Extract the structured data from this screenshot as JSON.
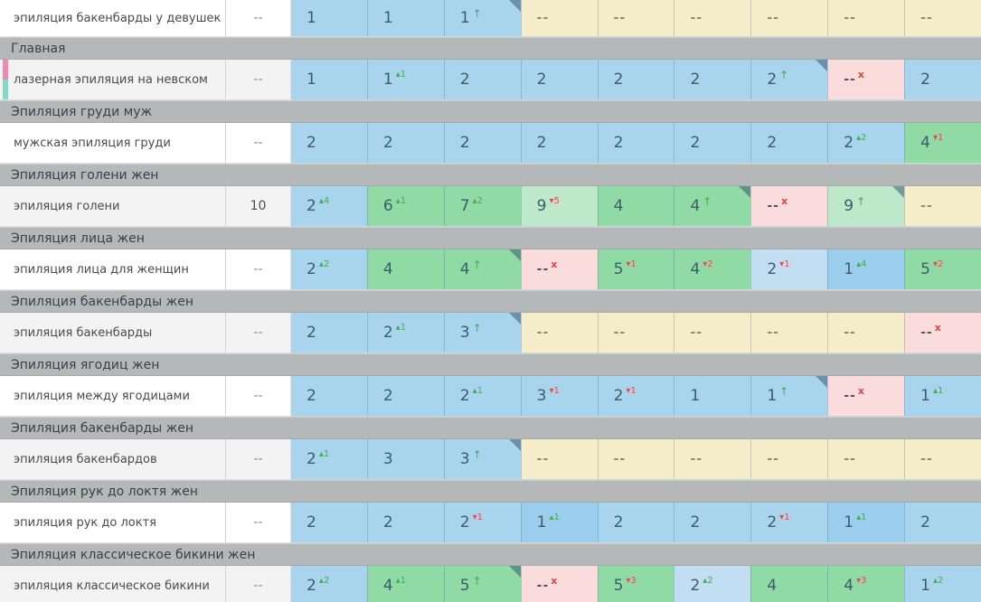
{
  "colors": {
    "position_blue": "#a9d4ee",
    "position_blue_light": "#c1def2",
    "position_blue_dark": "#9bcdec",
    "position_green": "#90dba5",
    "position_green_light": "#bde8ca",
    "no_position_cream": "#f5ecc9",
    "lost_pink": "#f9dcdb",
    "group_header_bg": "#b5b8b9",
    "change_up_green": "#44a95e",
    "change_down_red": "#e0504e",
    "lost_x_red": "#e04444",
    "tag_marker_pink": "#ef8bb2",
    "tag_marker_teal": "#7fdcc3"
  },
  "table": {
    "rows": [
      {
        "type": "keyword",
        "label": "эпиляция бакенбарды у девушек",
        "volume": "--",
        "stripe": false,
        "tags": false,
        "cells": [
          {
            "v": "1",
            "bg": "blue"
          },
          {
            "v": "1",
            "bg": "blue"
          },
          {
            "v": "1",
            "bg": "blue",
            "arrow": true,
            "corner": true
          },
          {
            "v": "--",
            "bg": "cream"
          },
          {
            "v": "--",
            "bg": "cream"
          },
          {
            "v": "--",
            "bg": "cream"
          },
          {
            "v": "--",
            "bg": "cream"
          },
          {
            "v": "--",
            "bg": "cream"
          },
          {
            "v": "--",
            "bg": "cream"
          }
        ]
      },
      {
        "type": "group",
        "label": "Главная"
      },
      {
        "type": "keyword",
        "label": "лазерная эпиляция на невском",
        "volume": "--",
        "stripe": true,
        "tags": true,
        "cells": [
          {
            "v": "1",
            "bg": "blue"
          },
          {
            "v": "1",
            "bg": "blue",
            "sup": "+1"
          },
          {
            "v": "2",
            "bg": "blue"
          },
          {
            "v": "2",
            "bg": "blue"
          },
          {
            "v": "2",
            "bg": "blue"
          },
          {
            "v": "2",
            "bg": "blue"
          },
          {
            "v": "2",
            "bg": "blue",
            "arrow": true,
            "corner": true
          },
          {
            "v": "--",
            "bg": "pink",
            "x": true
          },
          {
            "v": "2",
            "bg": "blue"
          }
        ]
      },
      {
        "type": "group",
        "label": "Эпиляция груди муж"
      },
      {
        "type": "keyword",
        "label": "мужская эпиляция груди",
        "volume": "--",
        "stripe": false,
        "tags": false,
        "cells": [
          {
            "v": "2",
            "bg": "blue"
          },
          {
            "v": "2",
            "bg": "blue"
          },
          {
            "v": "2",
            "bg": "blue"
          },
          {
            "v": "2",
            "bg": "blue"
          },
          {
            "v": "2",
            "bg": "blue"
          },
          {
            "v": "2",
            "bg": "blue"
          },
          {
            "v": "2",
            "bg": "blue"
          },
          {
            "v": "2",
            "bg": "blue",
            "sup": "+2"
          },
          {
            "v": "4",
            "bg": "green",
            "sup": "-1"
          }
        ]
      },
      {
        "type": "group",
        "label": "Эпиляция голени жен"
      },
      {
        "type": "keyword",
        "label": "эпиляция голени",
        "volume": "10",
        "stripe": true,
        "tags": false,
        "cells": [
          {
            "v": "2",
            "bg": "blue",
            "sup": "+4"
          },
          {
            "v": "6",
            "bg": "green",
            "sup": "+1"
          },
          {
            "v": "7",
            "bg": "green",
            "sup": "+2"
          },
          {
            "v": "9",
            "bg": "greenLight",
            "sup": "-5"
          },
          {
            "v": "4",
            "bg": "green"
          },
          {
            "v": "4",
            "bg": "green",
            "arrow": true,
            "corner": true
          },
          {
            "v": "--",
            "bg": "pink",
            "x": true
          },
          {
            "v": "9",
            "bg": "greenLight",
            "arrow": true,
            "corner": true
          },
          {
            "v": "--",
            "bg": "cream"
          }
        ]
      },
      {
        "type": "group",
        "label": "Эпиляция лица жен"
      },
      {
        "type": "keyword",
        "label": "эпиляция лица для женщин",
        "volume": "--",
        "stripe": false,
        "tags": false,
        "cells": [
          {
            "v": "2",
            "bg": "blue",
            "sup": "+2"
          },
          {
            "v": "4",
            "bg": "green"
          },
          {
            "v": "4",
            "bg": "green",
            "arrow": true,
            "corner": true
          },
          {
            "v": "--",
            "bg": "pink",
            "x": true
          },
          {
            "v": "5",
            "bg": "green",
            "sup": "-1"
          },
          {
            "v": "4",
            "bg": "green",
            "sup": "-2"
          },
          {
            "v": "2",
            "bg": "blueLight",
            "sup": "-1"
          },
          {
            "v": "1",
            "bg": "blueDark",
            "sup": "+4"
          },
          {
            "v": "5",
            "bg": "green",
            "sup": "-2"
          }
        ]
      },
      {
        "type": "group",
        "label": "Эпиляция бакенбарды жен"
      },
      {
        "type": "keyword",
        "label": "эпиляция бакенбарды",
        "volume": "--",
        "stripe": true,
        "tags": false,
        "cells": [
          {
            "v": "2",
            "bg": "blue"
          },
          {
            "v": "2",
            "bg": "blue",
            "sup": "+1"
          },
          {
            "v": "3",
            "bg": "blue",
            "arrow": true,
            "corner": true
          },
          {
            "v": "--",
            "bg": "cream"
          },
          {
            "v": "--",
            "bg": "cream"
          },
          {
            "v": "--",
            "bg": "cream"
          },
          {
            "v": "--",
            "bg": "cream"
          },
          {
            "v": "--",
            "bg": "cream"
          },
          {
            "v": "--",
            "bg": "pink",
            "x": true
          }
        ]
      },
      {
        "type": "group",
        "label": "Эпиляция ягодиц жен"
      },
      {
        "type": "keyword",
        "label": "эпиляция между ягодицами",
        "volume": "--",
        "stripe": false,
        "tags": false,
        "cells": [
          {
            "v": "2",
            "bg": "blue"
          },
          {
            "v": "2",
            "bg": "blue"
          },
          {
            "v": "2",
            "bg": "blue",
            "sup": "+1"
          },
          {
            "v": "3",
            "bg": "blue",
            "sup": "-1"
          },
          {
            "v": "2",
            "bg": "blue",
            "sup": "-1"
          },
          {
            "v": "1",
            "bg": "blue"
          },
          {
            "v": "1",
            "bg": "blue",
            "arrow": true,
            "corner": true
          },
          {
            "v": "--",
            "bg": "pink",
            "x": true
          },
          {
            "v": "1",
            "bg": "blue",
            "sup": "+1"
          }
        ]
      },
      {
        "type": "group",
        "label": "Эпиляция бакенбарды жен"
      },
      {
        "type": "keyword",
        "label": "эпиляция бакенбардов",
        "volume": "--",
        "stripe": true,
        "tags": false,
        "cells": [
          {
            "v": "2",
            "bg": "blue",
            "sup": "+1"
          },
          {
            "v": "3",
            "bg": "blue"
          },
          {
            "v": "3",
            "bg": "blue",
            "arrow": true,
            "corner": true
          },
          {
            "v": "--",
            "bg": "cream"
          },
          {
            "v": "--",
            "bg": "cream"
          },
          {
            "v": "--",
            "bg": "cream"
          },
          {
            "v": "--",
            "bg": "cream"
          },
          {
            "v": "--",
            "bg": "cream"
          },
          {
            "v": "--",
            "bg": "cream"
          }
        ]
      },
      {
        "type": "group",
        "label": "Эпиляция рук до локтя жен"
      },
      {
        "type": "keyword",
        "label": "эпиляция рук до локтя",
        "volume": "--",
        "stripe": false,
        "tags": false,
        "cells": [
          {
            "v": "2",
            "bg": "blue"
          },
          {
            "v": "2",
            "bg": "blue"
          },
          {
            "v": "2",
            "bg": "blue",
            "sup": "-1"
          },
          {
            "v": "1",
            "bg": "blueDark",
            "sup": "+1"
          },
          {
            "v": "2",
            "bg": "blue"
          },
          {
            "v": "2",
            "bg": "blue"
          },
          {
            "v": "2",
            "bg": "blue",
            "sup": "-1"
          },
          {
            "v": "1",
            "bg": "blueDark",
            "sup": "+1"
          },
          {
            "v": "2",
            "bg": "blue"
          }
        ]
      },
      {
        "type": "group",
        "label": "Эпиляция классическое бикини жен"
      },
      {
        "type": "keyword",
        "label": "эпиляция классическое бикини",
        "volume": "--",
        "stripe": true,
        "tags": false,
        "cells": [
          {
            "v": "2",
            "bg": "blue",
            "sup": "+2"
          },
          {
            "v": "4",
            "bg": "green",
            "sup": "+1"
          },
          {
            "v": "5",
            "bg": "green",
            "arrow": true,
            "corner": true
          },
          {
            "v": "--",
            "bg": "pink",
            "x": true
          },
          {
            "v": "5",
            "bg": "green",
            "sup": "-3"
          },
          {
            "v": "2",
            "bg": "blueLight",
            "sup": "+2"
          },
          {
            "v": "4",
            "bg": "green"
          },
          {
            "v": "4",
            "bg": "green",
            "sup": "-3"
          },
          {
            "v": "1",
            "bg": "blue",
            "sup": "+2"
          }
        ]
      }
    ]
  }
}
